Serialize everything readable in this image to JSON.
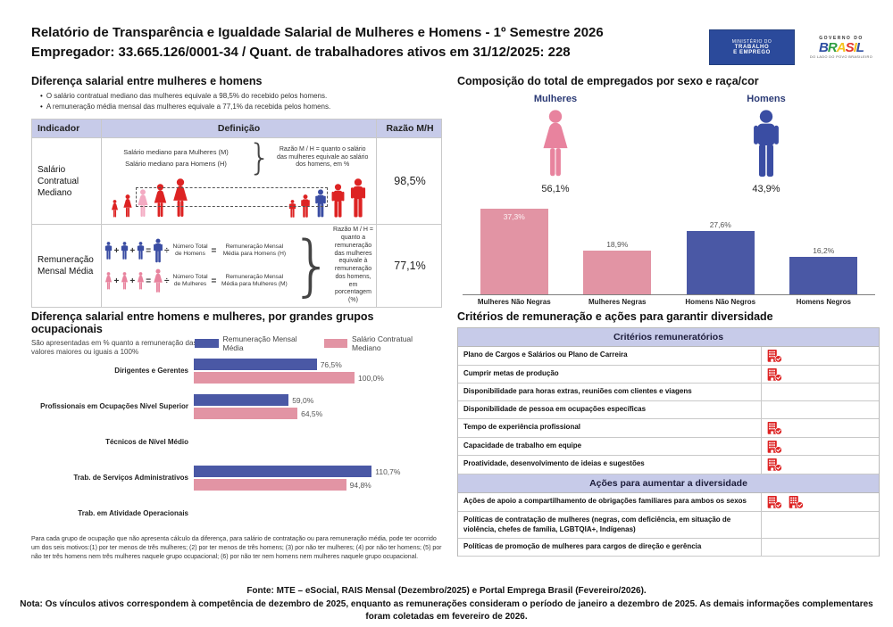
{
  "header": {
    "title_line1": "Relatório de Transparência e Igualdade Salarial de Mulheres e Homens - 1º Semestre 2026",
    "title_line2": "Empregador: 33.665.126/0001-34 / Quant. de trabalhadores ativos em 31/12/2025: 228",
    "logo": {
      "ministry_lines": [
        "MINISTÉRIO DO",
        "TRABALHO",
        "E EMPREGO"
      ],
      "gov_top": "GOVERNO DO",
      "gov_word": "BRASIL",
      "gov_bottom": "DO LADO DO POVO BRASILEIRO"
    }
  },
  "salary_diff": {
    "title": "Diferença salarial entre mulheres e homens",
    "bullets": [
      "O salário contratual mediano das mulheres equivale a 98,5% do recebido pelos homens.",
      "A remuneração média mensal das mulheres equivale a 77,1% da recebida pelos homens."
    ],
    "table": {
      "headers": [
        "Indicador",
        "Definição",
        "Razão M/H"
      ],
      "rows": [
        {
          "indicator": "Salário Contratual Mediano",
          "def_lines": [
            "Salário mediano para Mulheres (M)",
            "Salário mediano para Homens (H)"
          ],
          "def_note": "Razão M / H = quanto o salário das mulheres equivale ao salário dos homens, em %",
          "ratio": "98,5%"
        },
        {
          "indicator": "Remuneração Mensal Média",
          "eq_men": {
            "divide_label": "Número Total de Homens",
            "result_label": "Remuneração Mensal Média para Homens (H)"
          },
          "eq_women": {
            "divide_label": "Número Total de Mulheres",
            "result_label": "Remuneração Mensal Média para Mulheres (M)"
          },
          "def_note": "Razão M / H = quanto a remuneração das mulheres equivale à remuneração dos homens, em porcentagem (%)",
          "ratio": "77,1%"
        }
      ]
    }
  },
  "composition": {
    "title": "Composição do total de empregados por sexo e raça/cor",
    "pictograms": [
      {
        "label": "Mulheres",
        "value": "56,1%",
        "icon": "female-icon"
      },
      {
        "label": "Homens",
        "value": "43,9%",
        "icon": "male-icon"
      }
    ]
  },
  "occupational": {
    "title": "Diferença salarial entre homens e mulheres, por grandes grupos ocupacionais",
    "subtitle": "São apresentadas em % quanto a remuneração das mulheres vale em relação à dos homens. As situações positivas mostram valores maiores ou iguais a 100%",
    "footnote": "Para cada grupo de ocupação que não apresenta cálculo da diferença, para salário de contratação ou para remuneração média, pode ter ocorrido um dos seis motivos:(1) por ter menos de três mulheres; (2) por ter menos de três homens; (3) por não ter mulheres; (4) por não ter homens; (5) por não ter três homens nem três mulheres naquele grupo ocupacional; (6) por não ter nem homens nem mulheres naquele grupo ocupacional."
  },
  "criteria": {
    "title": "Critérios de remuneração e ações para garantir diversidade",
    "mark_icon": "building-check-icon",
    "sections": [
      {
        "header": "Critérios remuneratórios",
        "rows": [
          {
            "label": "Plano de Cargos e Salários ou Plano de Carreira",
            "marks": 1
          },
          {
            "label": "Cumprir metas de produção",
            "marks": 1
          },
          {
            "label": "Disponibilidade para horas extras, reuniões com clientes e viagens",
            "marks": 0
          },
          {
            "label": "Disponibilidade de pessoa em ocupações específicas",
            "marks": 0
          },
          {
            "label": "Tempo de experiência profissional",
            "marks": 1
          },
          {
            "label": "Capacidade de trabalho em equipe",
            "marks": 1
          },
          {
            "label": "Proatividade, desenvolvimento de ideias e sugestões",
            "marks": 1
          }
        ]
      },
      {
        "header": "Ações para aumentar a diversidade",
        "rows": [
          {
            "label": "Ações de apoio a compartilhamento de obrigações familiares para ambos os sexos",
            "marks": 2
          },
          {
            "label": "Políticas de contratação de mulheres (negras, com deficiência, em situação de violência, chefes de família, LGBTQIA+, Indígenas)",
            "marks": 0
          },
          {
            "label": "Políticas de promoção de mulheres para cargos de direção e gerência",
            "marks": 0
          }
        ]
      }
    ]
  },
  "footer": {
    "fonte": "Fonte: MTE – eSocial, RAIS Mensal (Dezembro/2025) e Portal Emprega Brasil (Fevereiro/2026).",
    "nota": "Nota: Os vínculos ativos correspondem à competência de dezembro de 2025, enquanto as remunerações consideram o período de janeiro a dezembro de 2025. As demais informações complementares foram coletadas em fevereiro de 2026."
  },
  "colors": {
    "red": "#dd2323",
    "pink": "#e8839e",
    "pink_light": "#f3aac2",
    "blue": "#3a4da3",
    "bar_pink": "#e294a4",
    "bar_blue": "#4a58a5",
    "lavender": "#c7cbe9",
    "navy": "#2b3a75",
    "icon_red": "#dd2323"
  },
  "chart_data": [
    {
      "type": "bar",
      "title": "Composição do total de empregados por sexo e raça/cor",
      "categories": [
        "Mulheres Não Negras",
        "Mulheres Negras",
        "Homens Não Negros",
        "Homens Negros"
      ],
      "values": [
        37.3,
        18.9,
        27.6,
        16.2
      ],
      "value_labels": [
        "37,3%",
        "18,9%",
        "27,6%",
        "16,2%"
      ],
      "bar_colors": [
        "#e294a4",
        "#e294a4",
        "#4a58a5",
        "#4a58a5"
      ],
      "ylim": [
        0,
        40
      ],
      "grid": false,
      "pictogram_values": [
        {
          "label": "Mulheres",
          "value": 56.1,
          "value_label": "56,1%"
        },
        {
          "label": "Homens",
          "value": 43.9,
          "value_label": "43,9%"
        }
      ]
    },
    {
      "type": "bar",
      "orientation": "horizontal",
      "title": "Diferença salarial entre homens e mulheres, por grandes grupos ocupacionais",
      "categories": [
        "Dirigentes e Gerentes",
        "Profissionais em Ocupações Nível Superior",
        "Técnicos de Nível Médio",
        "Trab. de Serviços Administrativos",
        "Trab. em Atividade Operacionais"
      ],
      "series": [
        {
          "name": "Remuneração Mensal Média",
          "color": "#4a58a5",
          "values": [
            76.5,
            59.0,
            null,
            110.7,
            null
          ],
          "value_labels": [
            "76,5%",
            "59,0%",
            null,
            "110,7%",
            null
          ]
        },
        {
          "name": "Salário Contratual Mediano",
          "color": "#e294a4",
          "values": [
            100.0,
            64.5,
            null,
            94.8,
            null
          ],
          "value_labels": [
            "100,0%",
            "64,5%",
            null,
            "94,8%",
            null
          ]
        }
      ],
      "xlim": [
        0,
        115
      ],
      "legend_position": "top",
      "grid": false
    }
  ]
}
